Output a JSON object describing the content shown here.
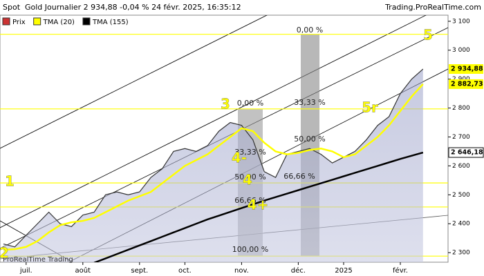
{
  "chart_data": {
    "type": "line",
    "title": "Spot  Gold Journalier 2 934,88 -0,04 % 24 févr. 2025, 16:35:12",
    "source": "Trading.ProRealTime.com",
    "watermark": "ProRealTime Trading",
    "categories": [
      null,
      null,
      "juil.",
      null,
      null,
      null,
      null,
      "août",
      null,
      null,
      null,
      null,
      "sept.",
      null,
      null,
      null,
      "oct.",
      null,
      null,
      null,
      null,
      "nov.",
      null,
      null,
      null,
      null,
      "déc.",
      null,
      null,
      null,
      "2025",
      null,
      null,
      null,
      null,
      "févr.",
      null,
      null
    ],
    "series": [
      {
        "name": "Prix",
        "color": "#333333",
        "values": [
          2330,
          2320,
          2360,
          2400,
          2440,
          2400,
          2390,
          2430,
          2440,
          2500,
          2510,
          2500,
          2510,
          2560,
          2590,
          2650,
          2660,
          2650,
          2670,
          2720,
          2750,
          2740,
          2690,
          2580,
          2560,
          2640,
          2650,
          2660,
          2640,
          2610,
          2630,
          2650,
          2690,
          2740,
          2770,
          2850,
          2900,
          2934.88
        ],
        "last_label": "2 934,88"
      },
      {
        "name": "TMA (20)",
        "color": "#ffff00",
        "values": [
          2310,
          2312,
          2320,
          2340,
          2370,
          2395,
          2405,
          2410,
          2420,
          2440,
          2460,
          2480,
          2495,
          2510,
          2540,
          2570,
          2600,
          2620,
          2640,
          2670,
          2700,
          2730,
          2720,
          2680,
          2650,
          2640,
          2645,
          2655,
          2660,
          2650,
          2630,
          2640,
          2670,
          2700,
          2740,
          2790,
          2840,
          2882.73
        ],
        "last_label": "2 882,73"
      },
      {
        "name": "TMA (155)",
        "color": "#000000",
        "values": [
          null,
          null,
          null,
          null,
          null,
          null,
          null,
          null,
          2265,
          2280,
          2295,
          2310,
          2325,
          2340,
          2355,
          2370,
          2385,
          2400,
          2415,
          2428,
          2441,
          2454,
          2467,
          2480,
          2492,
          2504,
          2516,
          2528,
          2540,
          2552,
          2564,
          2576,
          2588,
          2600,
          2612,
          2624,
          2635,
          2646.18
        ],
        "last_label": "2 646,18"
      }
    ],
    "ylim": [
      2267,
      3121
    ],
    "yticks": [
      {
        "value": 2300,
        "label": "2 300"
      },
      {
        "value": 2400,
        "label": "2 400"
      },
      {
        "value": 2500,
        "label": "2 500"
      },
      {
        "value": 2600,
        "label": "2 600"
      },
      {
        "value": 2700,
        "label": "2 700"
      },
      {
        "value": 2800,
        "label": "2 800"
      },
      {
        "value": 2900,
        "label": "2 900"
      },
      {
        "value": 3000,
        "label": "3 000"
      },
      {
        "value": 3100,
        "label": "3 100"
      }
    ],
    "levels": [
      3055,
      2797,
      2541,
      2458,
      2288
    ],
    "fib_labels": [
      "0,00 %",
      "33,33 %",
      "50,00 %",
      "66,66 %",
      "100,00 %",
      "0,00 %",
      "33,33 %",
      "50,00 %",
      "66,66 %"
    ],
    "annotations": [
      "1",
      "2",
      "3",
      "4-",
      "4",
      "4+",
      "5",
      "5r"
    ]
  }
}
